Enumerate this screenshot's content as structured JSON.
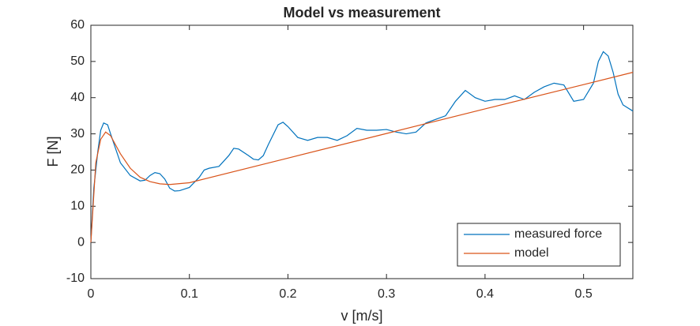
{
  "chart_data": {
    "type": "line",
    "title": "Model vs measurement",
    "x_label": "v [m/s]",
    "y_label": "F [N]",
    "xlim": [
      0,
      0.55
    ],
    "ylim": [
      -10,
      60
    ],
    "xticks": [
      0,
      0.1,
      0.2,
      0.3,
      0.4,
      0.5
    ],
    "yticks": [
      -10,
      0,
      10,
      20,
      30,
      40,
      50,
      60
    ],
    "legend_position": "lower right",
    "series": [
      {
        "name": "measured force",
        "color": "#0072bd",
        "x": [
          0,
          0.003,
          0.007,
          0.01,
          0.013,
          0.017,
          0.02,
          0.025,
          0.03,
          0.04,
          0.05,
          0.055,
          0.06,
          0.065,
          0.07,
          0.075,
          0.08,
          0.085,
          0.09,
          0.1,
          0.11,
          0.115,
          0.12,
          0.13,
          0.14,
          0.145,
          0.15,
          0.16,
          0.165,
          0.17,
          0.175,
          0.18,
          0.19,
          0.195,
          0.2,
          0.21,
          0.22,
          0.23,
          0.24,
          0.25,
          0.26,
          0.27,
          0.28,
          0.29,
          0.3,
          0.31,
          0.32,
          0.33,
          0.34,
          0.35,
          0.36,
          0.37,
          0.38,
          0.39,
          0.4,
          0.41,
          0.42,
          0.43,
          0.44,
          0.45,
          0.46,
          0.47,
          0.48,
          0.49,
          0.5,
          0.51,
          0.515,
          0.52,
          0.525,
          0.53,
          0.535,
          0.54,
          0.55
        ],
        "values": [
          0,
          15,
          25,
          31,
          33,
          32.5,
          30,
          26,
          22,
          18.5,
          17,
          17.2,
          18.5,
          19.3,
          19,
          17.5,
          15,
          14.2,
          14.3,
          15.2,
          18,
          20,
          20.5,
          21,
          24,
          26,
          25.8,
          24,
          23,
          22.8,
          24,
          27,
          32.5,
          33.2,
          32,
          29,
          28.2,
          29,
          29,
          28.2,
          29.5,
          31.5,
          31,
          31,
          31.2,
          30.5,
          30,
          30.5,
          33,
          34,
          35,
          39,
          42,
          40,
          39,
          39.5,
          39.5,
          40.5,
          39.5,
          41.5,
          43,
          44,
          43.5,
          39,
          39.5,
          44,
          50,
          52.7,
          51.5,
          47,
          41,
          38,
          36.3
        ]
      },
      {
        "name": "model",
        "color": "#d95319",
        "x": [
          0,
          0.005,
          0.01,
          0.015,
          0.02,
          0.03,
          0.04,
          0.05,
          0.06,
          0.07,
          0.08,
          0.1,
          0.2,
          0.3,
          0.4,
          0.5,
          0.55
        ],
        "values": [
          0,
          22,
          28.5,
          30.5,
          29.5,
          24.5,
          20.5,
          18,
          16.8,
          16.2,
          16,
          16.5,
          23.3,
          30.1,
          36.9,
          43.6,
          47
        ]
      }
    ]
  }
}
